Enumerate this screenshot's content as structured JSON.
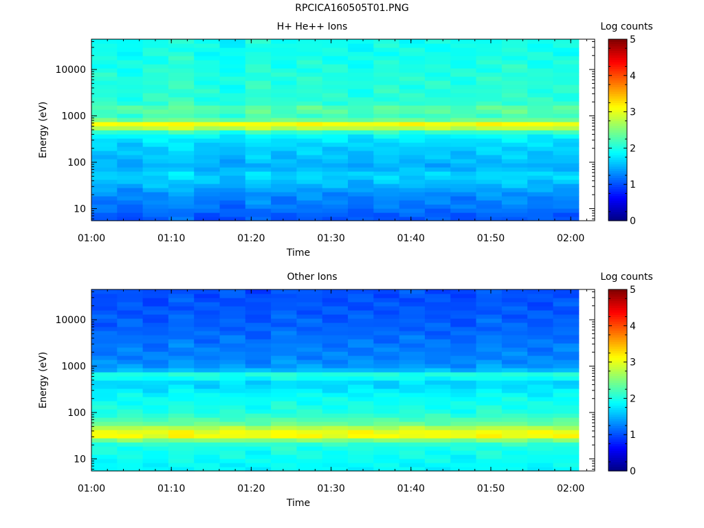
{
  "figure": {
    "title": "RPCICA160505T01.PNG"
  },
  "colors": {
    "colormap": "jet",
    "axis": "#000000",
    "background": "#ffffff"
  },
  "chart_data": [
    {
      "type": "heatmap",
      "title": "H+ He++ Ions",
      "xlabel": "Time",
      "ylabel": "Energy (eV)",
      "xticks": [
        "01:00",
        "01:10",
        "01:20",
        "01:30",
        "01:40",
        "01:50",
        "02:00"
      ],
      "xtick_minutes": [
        0,
        10,
        20,
        30,
        40,
        50,
        60
      ],
      "xlim_minutes": [
        0,
        63
      ],
      "data_end_minutes": 61,
      "yscale": "log",
      "ylim": [
        5.5,
        45000
      ],
      "yticks": [
        10,
        100,
        1000,
        10000
      ],
      "yticklabels": [
        "10",
        "100",
        "1000",
        "10000"
      ],
      "colorbar": {
        "label": "Log counts",
        "range": [
          0,
          5
        ],
        "ticks": [
          "0",
          "1",
          "2",
          "3",
          "4",
          "5"
        ]
      },
      "time_bins": 19,
      "energy_profile": [
        {
          "eV": 7,
          "v": 1.05
        },
        {
          "eV": 10,
          "v": 1.2
        },
        {
          "eV": 14,
          "v": 1.25
        },
        {
          "eV": 20,
          "v": 1.3
        },
        {
          "eV": 28,
          "v": 1.45
        },
        {
          "eV": 40,
          "v": 1.6
        },
        {
          "eV": 55,
          "v": 1.7
        },
        {
          "eV": 80,
          "v": 1.45
        },
        {
          "eV": 110,
          "v": 1.55
        },
        {
          "eV": 160,
          "v": 1.6
        },
        {
          "eV": 220,
          "v": 1.65
        },
        {
          "eV": 300,
          "v": 1.75
        },
        {
          "eV": 400,
          "v": 1.9
        },
        {
          "eV": 500,
          "v": 2.3
        },
        {
          "eV": 580,
          "v": 3.05
        },
        {
          "eV": 660,
          "v": 3.2
        },
        {
          "eV": 760,
          "v": 2.6
        },
        {
          "eV": 900,
          "v": 2.2
        },
        {
          "eV": 1100,
          "v": 2.15
        },
        {
          "eV": 1400,
          "v": 2.4
        },
        {
          "eV": 1800,
          "v": 2.1
        },
        {
          "eV": 3000,
          "v": 2.05
        },
        {
          "eV": 6000,
          "v": 2.05
        },
        {
          "eV": 12000,
          "v": 2.0
        },
        {
          "eV": 25000,
          "v": 1.95
        },
        {
          "eV": 45000,
          "v": 1.95
        }
      ],
      "time_modulation": [
        0.0,
        -0.1,
        0.05,
        0.15,
        -0.05,
        -0.15,
        0.1,
        -0.05,
        0.05,
        0.0,
        -0.1,
        0.05,
        0.0,
        0.0,
        -0.05,
        0.05,
        0.1,
        0.0,
        0.0
      ]
    },
    {
      "type": "heatmap",
      "title": "Other Ions",
      "xlabel": "Time",
      "ylabel": "Energy (eV)",
      "xticks": [
        "01:00",
        "01:10",
        "01:20",
        "01:30",
        "01:40",
        "01:50",
        "02:00"
      ],
      "xtick_minutes": [
        0,
        10,
        20,
        30,
        40,
        50,
        60
      ],
      "xlim_minutes": [
        0,
        63
      ],
      "data_end_minutes": 61,
      "yscale": "log",
      "ylim": [
        5.5,
        45000
      ],
      "yticks": [
        10,
        100,
        1000,
        10000
      ],
      "yticklabels": [
        "10",
        "100",
        "1000",
        "10000"
      ],
      "colorbar": {
        "label": "Log counts",
        "range": [
          0,
          5
        ],
        "ticks": [
          "0",
          "1",
          "2",
          "3",
          "4",
          "5"
        ]
      },
      "time_bins": 19,
      "energy_profile": [
        {
          "eV": 7,
          "v": 1.85
        },
        {
          "eV": 10,
          "v": 1.9
        },
        {
          "eV": 14,
          "v": 1.95
        },
        {
          "eV": 20,
          "v": 2.0
        },
        {
          "eV": 25,
          "v": 2.4
        },
        {
          "eV": 30,
          "v": 3.05
        },
        {
          "eV": 36,
          "v": 3.1
        },
        {
          "eV": 44,
          "v": 2.9
        },
        {
          "eV": 55,
          "v": 2.4
        },
        {
          "eV": 75,
          "v": 2.2
        },
        {
          "eV": 100,
          "v": 2.0
        },
        {
          "eV": 150,
          "v": 1.95
        },
        {
          "eV": 250,
          "v": 1.85
        },
        {
          "eV": 400,
          "v": 1.65
        },
        {
          "eV": 500,
          "v": 1.7
        },
        {
          "eV": 580,
          "v": 2.0
        },
        {
          "eV": 660,
          "v": 2.1
        },
        {
          "eV": 760,
          "v": 1.6
        },
        {
          "eV": 1000,
          "v": 1.35
        },
        {
          "eV": 1500,
          "v": 1.25
        },
        {
          "eV": 3000,
          "v": 1.2
        },
        {
          "eV": 6000,
          "v": 1.1
        },
        {
          "eV": 12000,
          "v": 1.05
        },
        {
          "eV": 25000,
          "v": 1.0
        },
        {
          "eV": 45000,
          "v": 1.0
        }
      ],
      "time_modulation": [
        0.0,
        0.05,
        -0.05,
        0.1,
        0.0,
        0.05,
        -0.05,
        0.1,
        0.05,
        0.0,
        0.05,
        0.0,
        0.05,
        0.0,
        -0.05,
        0.1,
        0.05,
        0.0,
        0.05
      ]
    }
  ]
}
